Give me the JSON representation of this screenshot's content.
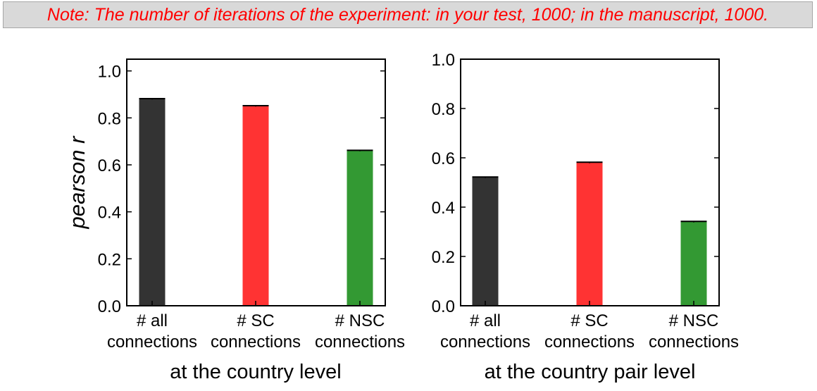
{
  "note": {
    "text": "Note: The number of iterations of the experiment: in your test, 1000; in the manuscript, 1000."
  },
  "colors": {
    "all": "#333333",
    "sc": "#ff3333",
    "nsc": "#339933",
    "note_text": "#ff0000",
    "note_bg": "#d9d9d9"
  },
  "chart_data": [
    {
      "type": "bar",
      "title": "",
      "xlabel": "at the country level",
      "ylabel": "pearson r",
      "categories": [
        "# all\nconnections",
        "# SC\nconnections",
        "# NSC\nconnections"
      ],
      "values": [
        0.88,
        0.85,
        0.66
      ],
      "error": [
        0.002,
        0.002,
        0.002
      ],
      "bar_colors": [
        "#333333",
        "#ff3333",
        "#339933"
      ],
      "ylim": [
        0,
        1.05
      ],
      "yticks": [
        0.0,
        0.2,
        0.4,
        0.6,
        0.8,
        1.0
      ],
      "ytick_labels": [
        "0.0",
        "0.2",
        "0.4",
        "0.6",
        "0.8",
        "1.0"
      ],
      "grid": false
    },
    {
      "type": "bar",
      "title": "",
      "xlabel": "at the country pair level",
      "ylabel": "",
      "categories": [
        "# all\nconnections",
        "# SC\nconnections",
        "# NSC\nconnections"
      ],
      "values": [
        0.52,
        0.58,
        0.34
      ],
      "error": [
        0.002,
        0.002,
        0.002
      ],
      "bar_colors": [
        "#333333",
        "#ff3333",
        "#339933"
      ],
      "ylim": [
        0,
        1.0
      ],
      "yticks": [
        0.0,
        0.2,
        0.4,
        0.6,
        0.8,
        1.0
      ],
      "ytick_labels": [
        "0.0",
        "0.2",
        "0.4",
        "0.6",
        "0.8",
        "1.0"
      ],
      "grid": false
    }
  ]
}
